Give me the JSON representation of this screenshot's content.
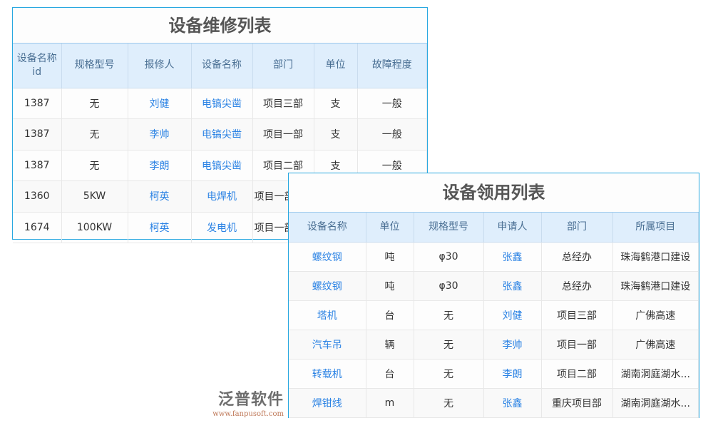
{
  "repair": {
    "title": "设备维修列表",
    "headers": [
      "设备名称id",
      "规格型号",
      "报修人",
      "设备名称",
      "部门",
      "单位",
      "故障程度"
    ],
    "rows": [
      [
        "1387",
        "无",
        "刘健",
        "电镐尖凿",
        "项目三部",
        "支",
        "一般"
      ],
      [
        "1387",
        "无",
        "李帅",
        "电镐尖凿",
        "项目一部",
        "支",
        "一般"
      ],
      [
        "1387",
        "无",
        "李朗",
        "电镐尖凿",
        "项目二部",
        "支",
        "一般"
      ],
      [
        "1360",
        "5KW",
        "柯英",
        "电焊机",
        "项目一部",
        "",
        ""
      ],
      [
        "1674",
        "100KW",
        "柯英",
        "发电机",
        "项目一部",
        "",
        ""
      ]
    ]
  },
  "usage": {
    "title": "设备领用列表",
    "headers": [
      "设备名称",
      "单位",
      "规格型号",
      "申请人",
      "部门",
      "所属项目"
    ],
    "rows": [
      [
        "螺纹钢",
        "吨",
        "φ30",
        "张鑫",
        "总经办",
        "珠海鹤港口建设"
      ],
      [
        "螺纹钢",
        "吨",
        "φ30",
        "张鑫",
        "总经办",
        "珠海鹤港口建设"
      ],
      [
        "塔机",
        "台",
        "无",
        "刘健",
        "项目三部",
        "广佛高速"
      ],
      [
        "汽车吊",
        "辆",
        "无",
        "李帅",
        "项目一部",
        "广佛高速"
      ],
      [
        "转载机",
        "台",
        "无",
        "李朗",
        "项目二部",
        "湖南洞庭湖水..."
      ],
      [
        "焊钳线",
        "m",
        "无",
        "张鑫",
        "重庆项目部",
        "湖南洞庭湖水..."
      ]
    ]
  },
  "watermark": {
    "name": "泛普软件",
    "url": "www.fanpusoft.com"
  },
  "colors": {
    "border": "#29a8e0",
    "header_bg": "#dfeefc",
    "link": "#2a82e4"
  }
}
